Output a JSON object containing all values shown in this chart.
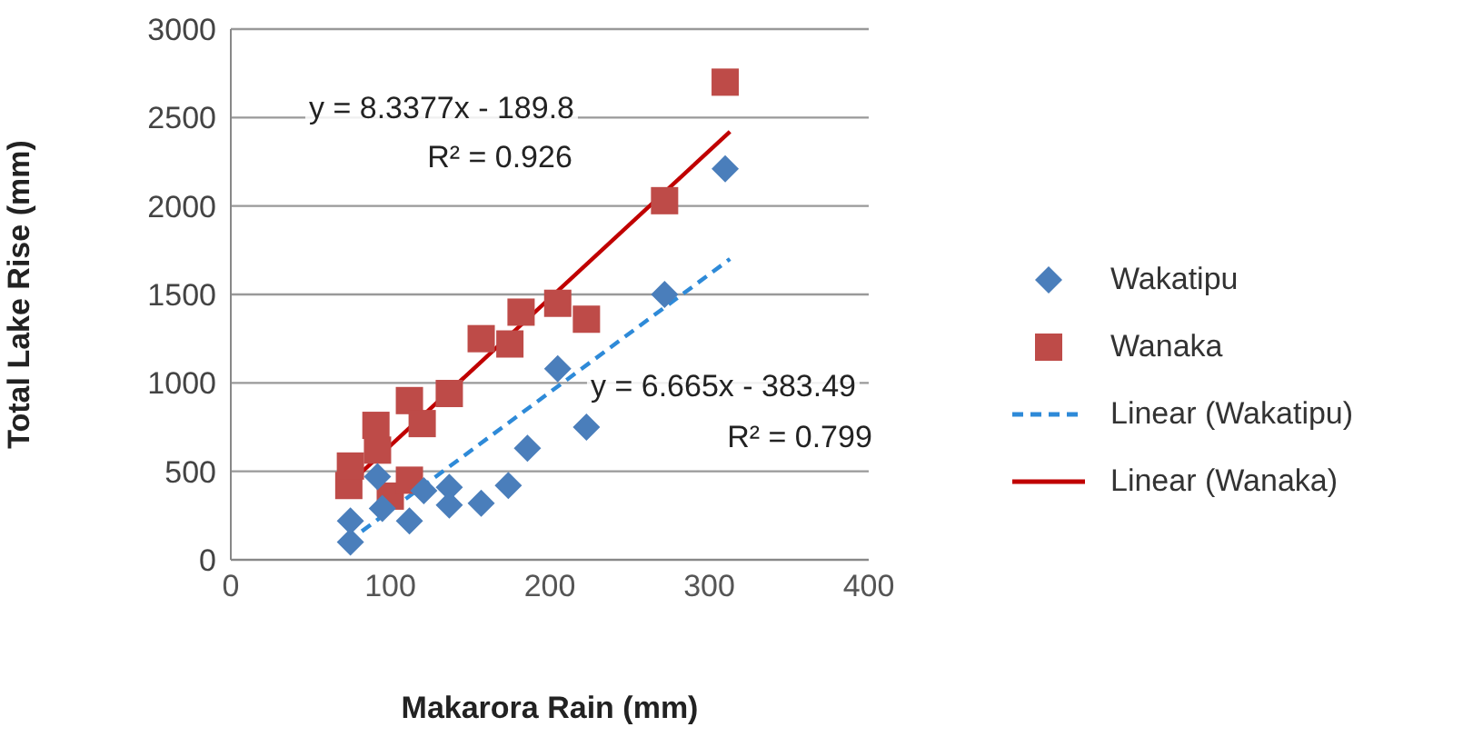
{
  "chart_data": {
    "type": "scatter",
    "xlabel": "Makarora Rain (mm)",
    "ylabel": "Total Lake Rise (mm)",
    "xlim": [
      0,
      400
    ],
    "xticks": [
      0,
      100,
      200,
      300,
      400
    ],
    "ylim": [
      0,
      3000
    ],
    "yticks": [
      0,
      500,
      1000,
      1500,
      2000,
      2500,
      3000
    ],
    "grid": "y",
    "legend": "right",
    "series": [
      {
        "name": "Wakatipu",
        "marker": "diamond",
        "color": "#4a7ebb",
        "x": [
          75,
          75,
          92,
          95,
          112,
          121,
          137,
          137,
          157,
          174,
          186,
          205,
          223,
          272,
          310
        ],
        "values": [
          100,
          220,
          470,
          290,
          220,
          390,
          410,
          310,
          320,
          420,
          630,
          1080,
          750,
          1500,
          2210
        ]
      },
      {
        "name": "Wanaka",
        "marker": "square",
        "color": "#be4b48",
        "x": [
          74,
          75,
          91,
          92,
          100,
          112,
          112,
          120,
          137,
          157,
          175,
          182,
          205,
          223,
          272,
          310
        ],
        "values": [
          420,
          530,
          760,
          620,
          360,
          450,
          900,
          770,
          940,
          1250,
          1220,
          1400,
          1450,
          1360,
          2030,
          2700
        ]
      },
      {
        "name": "Linear (Wakatipu)",
        "type": "line",
        "marker": "none",
        "line_style": "dashed",
        "color": "#2e8ad8",
        "x": [
          73,
          313
        ],
        "values": [
          100,
          1700
        ]
      },
      {
        "name": "Linear (Wanaka)",
        "type": "line",
        "marker": "none",
        "line_style": "solid",
        "color": "#c00000",
        "x": [
          73,
          313
        ],
        "values": [
          420,
          2420
        ]
      }
    ],
    "annotations": [
      "y = 8.3377x - 189.8",
      "R² = 0.926",
      "y = 6.665x - 383.49",
      "R² = 0.799"
    ]
  }
}
